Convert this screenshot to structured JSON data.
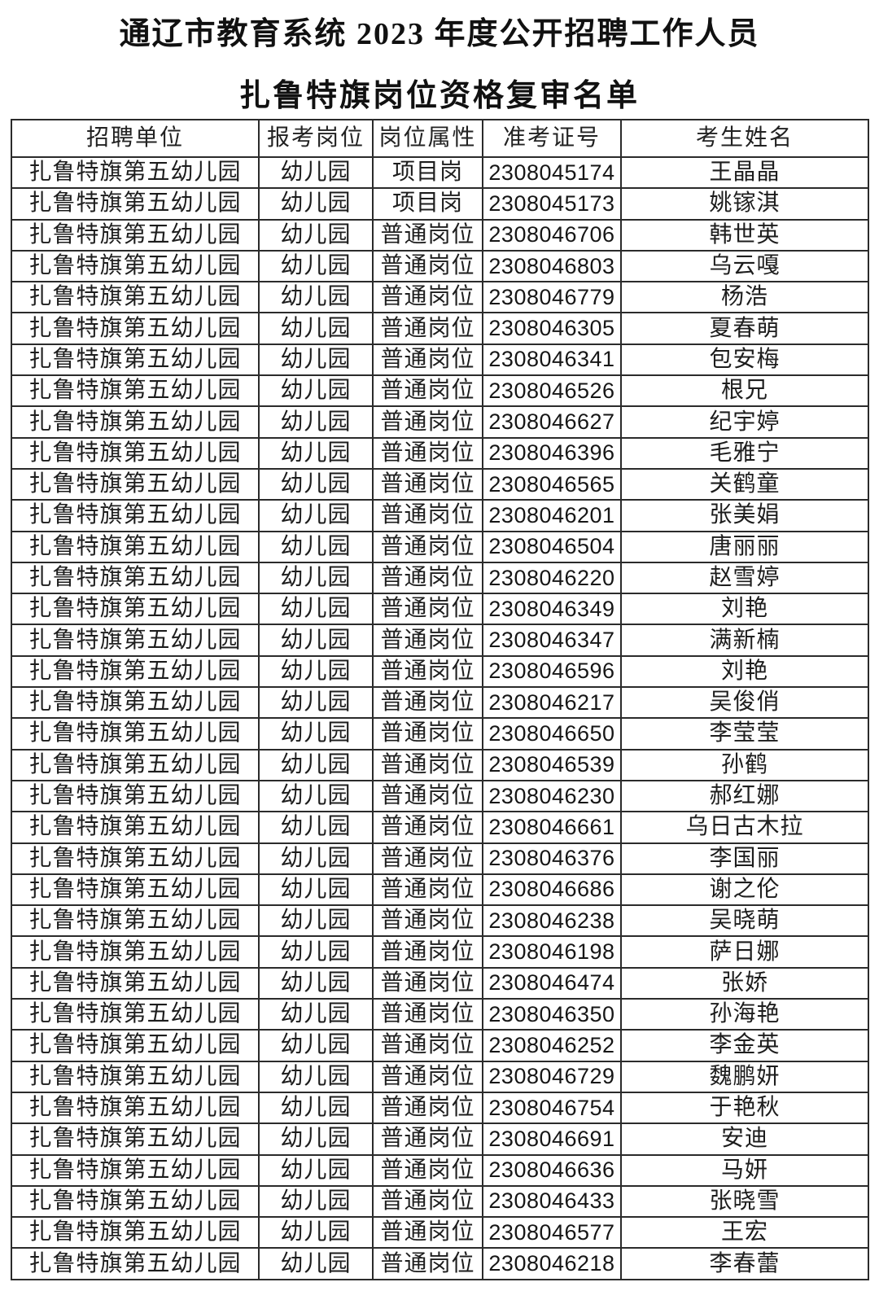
{
  "page": {
    "title_line1": "通辽市教育系统 2023 年度公开招聘工作人员",
    "title_line2": "扎鲁特旗岗位资格复审名单"
  },
  "colors": {
    "background": "#ffffff",
    "text": "#1d1d1d",
    "border": "#2b2b2b"
  },
  "table": {
    "columns": [
      "招聘单位",
      "报考岗位",
      "岗位属性",
      "准考证号",
      "考生姓名"
    ],
    "rows": [
      [
        "扎鲁特旗第五幼儿园",
        "幼儿园",
        "项目岗",
        "2308045174",
        "王晶晶"
      ],
      [
        "扎鲁特旗第五幼儿园",
        "幼儿园",
        "项目岗",
        "2308045173",
        "姚镓淇"
      ],
      [
        "扎鲁特旗第五幼儿园",
        "幼儿园",
        "普通岗位",
        "2308046706",
        "韩世英"
      ],
      [
        "扎鲁特旗第五幼儿园",
        "幼儿园",
        "普通岗位",
        "2308046803",
        "乌云嘎"
      ],
      [
        "扎鲁特旗第五幼儿园",
        "幼儿园",
        "普通岗位",
        "2308046779",
        "杨浩"
      ],
      [
        "扎鲁特旗第五幼儿园",
        "幼儿园",
        "普通岗位",
        "2308046305",
        "夏春萌"
      ],
      [
        "扎鲁特旗第五幼儿园",
        "幼儿园",
        "普通岗位",
        "2308046341",
        "包安梅"
      ],
      [
        "扎鲁特旗第五幼儿园",
        "幼儿园",
        "普通岗位",
        "2308046526",
        "根兄"
      ],
      [
        "扎鲁特旗第五幼儿园",
        "幼儿园",
        "普通岗位",
        "2308046627",
        "纪宇婷"
      ],
      [
        "扎鲁特旗第五幼儿园",
        "幼儿园",
        "普通岗位",
        "2308046396",
        "毛雅宁"
      ],
      [
        "扎鲁特旗第五幼儿园",
        "幼儿园",
        "普通岗位",
        "2308046565",
        "关鹤童"
      ],
      [
        "扎鲁特旗第五幼儿园",
        "幼儿园",
        "普通岗位",
        "2308046201",
        "张美娟"
      ],
      [
        "扎鲁特旗第五幼儿园",
        "幼儿园",
        "普通岗位",
        "2308046504",
        "唐丽丽"
      ],
      [
        "扎鲁特旗第五幼儿园",
        "幼儿园",
        "普通岗位",
        "2308046220",
        "赵雪婷"
      ],
      [
        "扎鲁特旗第五幼儿园",
        "幼儿园",
        "普通岗位",
        "2308046349",
        "刘艳"
      ],
      [
        "扎鲁特旗第五幼儿园",
        "幼儿园",
        "普通岗位",
        "2308046347",
        "满新楠"
      ],
      [
        "扎鲁特旗第五幼儿园",
        "幼儿园",
        "普通岗位",
        "2308046596",
        "刘艳"
      ],
      [
        "扎鲁特旗第五幼儿园",
        "幼儿园",
        "普通岗位",
        "2308046217",
        "吴俊俏"
      ],
      [
        "扎鲁特旗第五幼儿园",
        "幼儿园",
        "普通岗位",
        "2308046650",
        "李莹莹"
      ],
      [
        "扎鲁特旗第五幼儿园",
        "幼儿园",
        "普通岗位",
        "2308046539",
        "孙鹤"
      ],
      [
        "扎鲁特旗第五幼儿园",
        "幼儿园",
        "普通岗位",
        "2308046230",
        "郝红娜"
      ],
      [
        "扎鲁特旗第五幼儿园",
        "幼儿园",
        "普通岗位",
        "2308046661",
        "乌日古木拉"
      ],
      [
        "扎鲁特旗第五幼儿园",
        "幼儿园",
        "普通岗位",
        "2308046376",
        "李国丽"
      ],
      [
        "扎鲁特旗第五幼儿园",
        "幼儿园",
        "普通岗位",
        "2308046686",
        "谢之伦"
      ],
      [
        "扎鲁特旗第五幼儿园",
        "幼儿园",
        "普通岗位",
        "2308046238",
        "吴晓萌"
      ],
      [
        "扎鲁特旗第五幼儿园",
        "幼儿园",
        "普通岗位",
        "2308046198",
        "萨日娜"
      ],
      [
        "扎鲁特旗第五幼儿园",
        "幼儿园",
        "普通岗位",
        "2308046474",
        "张娇"
      ],
      [
        "扎鲁特旗第五幼儿园",
        "幼儿园",
        "普通岗位",
        "2308046350",
        "孙海艳"
      ],
      [
        "扎鲁特旗第五幼儿园",
        "幼儿园",
        "普通岗位",
        "2308046252",
        "李金英"
      ],
      [
        "扎鲁特旗第五幼儿园",
        "幼儿园",
        "普通岗位",
        "2308046729",
        "魏鹏妍"
      ],
      [
        "扎鲁特旗第五幼儿园",
        "幼儿园",
        "普通岗位",
        "2308046754",
        "于艳秋"
      ],
      [
        "扎鲁特旗第五幼儿园",
        "幼儿园",
        "普通岗位",
        "2308046691",
        "安迪"
      ],
      [
        "扎鲁特旗第五幼儿园",
        "幼儿园",
        "普通岗位",
        "2308046636",
        "马妍"
      ],
      [
        "扎鲁特旗第五幼儿园",
        "幼儿园",
        "普通岗位",
        "2308046433",
        "张晓雪"
      ],
      [
        "扎鲁特旗第五幼儿园",
        "幼儿园",
        "普通岗位",
        "2308046577",
        "王宏"
      ],
      [
        "扎鲁特旗第五幼儿园",
        "幼儿园",
        "普通岗位",
        "2308046218",
        "李春蕾"
      ]
    ]
  }
}
